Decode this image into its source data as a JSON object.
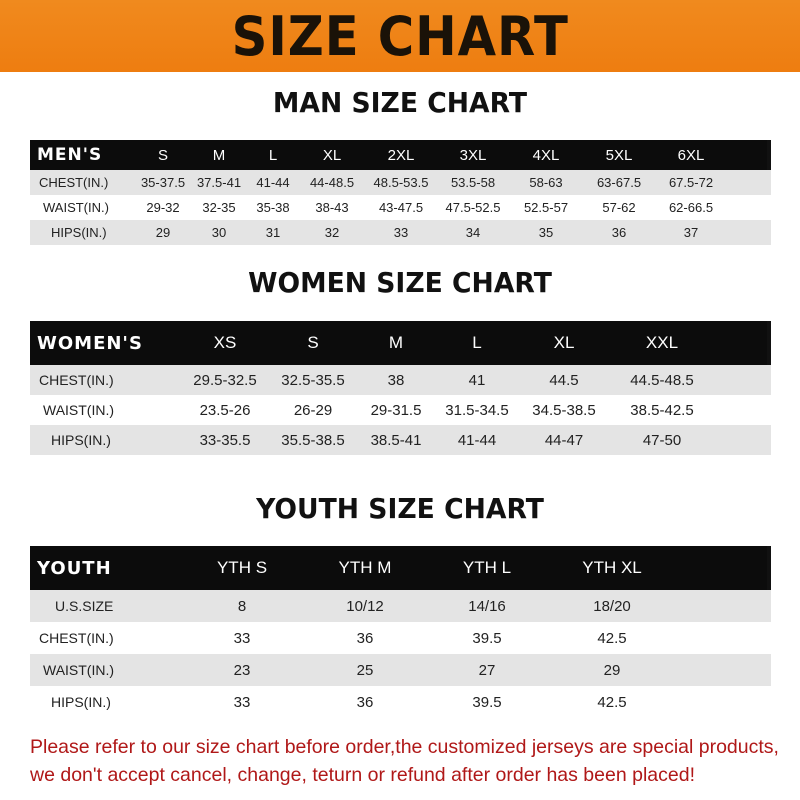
{
  "banner_title": "SIZE CHART",
  "men": {
    "title": "MAN SIZE CHART",
    "header": "MEN'S",
    "sizes": [
      "S",
      "M",
      "L",
      "XL",
      "2XL",
      "3XL",
      "4XL",
      "5XL",
      "6XL"
    ],
    "rows": [
      {
        "label": "CHEST(IN.)",
        "values": [
          "35-37.5",
          "37.5-41",
          "41-44",
          "44-48.5",
          "48.5-53.5",
          "53.5-58",
          "58-63",
          "63-67.5",
          "67.5-72"
        ]
      },
      {
        "label": "WAIST(IN.)",
        "values": [
          "29-32",
          "32-35",
          "35-38",
          "38-43",
          "43-47.5",
          "47.5-52.5",
          "52.5-57",
          "57-62",
          "62-66.5"
        ]
      },
      {
        "label": "HIPS(IN.)",
        "values": [
          "29",
          "30",
          "31",
          "32",
          "33",
          "34",
          "35",
          "36",
          "37"
        ]
      }
    ]
  },
  "women": {
    "title": "WOMEN SIZE CHART",
    "header": "WOMEN'S",
    "sizes": [
      "XS",
      "S",
      "M",
      "L",
      "XL",
      "XXL"
    ],
    "rows": [
      {
        "label": "CHEST(IN.)",
        "values": [
          "29.5-32.5",
          "32.5-35.5",
          "38",
          "41",
          "44.5",
          "44.5-48.5"
        ]
      },
      {
        "label": "WAIST(IN.)",
        "values": [
          "23.5-26",
          "26-29",
          "29-31.5",
          "31.5-34.5",
          "34.5-38.5",
          "38.5-42.5"
        ]
      },
      {
        "label": "HIPS(IN.)",
        "values": [
          "33-35.5",
          "35.5-38.5",
          "38.5-41",
          "41-44",
          "44-47",
          "47-50"
        ]
      }
    ]
  },
  "youth": {
    "title": "YOUTH SIZE CHART",
    "header": "YOUTH",
    "sizes": [
      "YTH S",
      "YTH M",
      "YTH L",
      "YTH XL"
    ],
    "rows": [
      {
        "label": "U.S.SIZE",
        "values": [
          "8",
          "10/12",
          "14/16",
          "18/20"
        ]
      },
      {
        "label": "CHEST(IN.)",
        "values": [
          "33",
          "36",
          "39.5",
          "42.5"
        ]
      },
      {
        "label": "WAIST(IN.)",
        "values": [
          "23",
          "25",
          "27",
          "29"
        ]
      },
      {
        "label": "HIPS(IN.)",
        "values": [
          "33",
          "36",
          "39.5",
          "42.5"
        ]
      }
    ]
  },
  "note": [
    "Please refer to our size chart before order,the customized jerseys are special products,",
    "we don't accept cancel, change, teturn or refund after order has been placed!"
  ],
  "colors": {
    "banner": "#ee7d10",
    "header_row": "#0c0c0c",
    "stripe": "#e4e4e4",
    "note": "#b01818"
  }
}
